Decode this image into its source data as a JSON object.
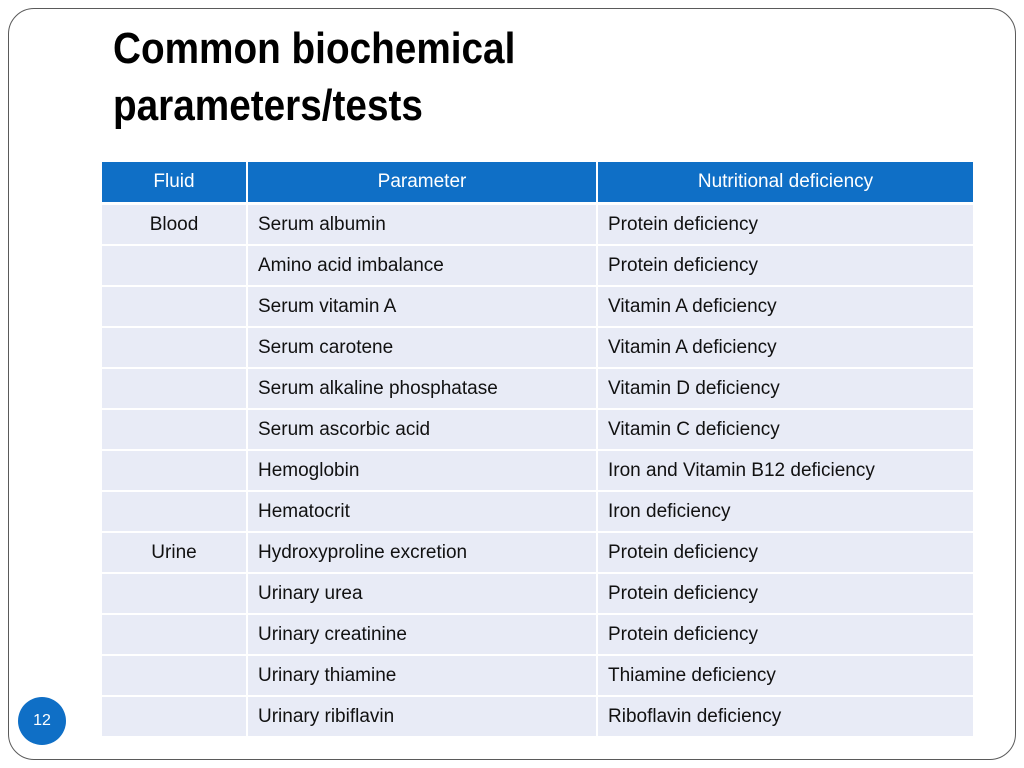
{
  "slide": {
    "title_line1": "Common biochemical",
    "title_line2": "parameters/tests",
    "page_number": "12"
  },
  "table": {
    "headers": [
      "Fluid",
      "Parameter",
      "Nutritional deficiency"
    ],
    "rows": [
      {
        "fluid": "Blood",
        "parameter": "Serum albumin",
        "deficiency": "Protein deficiency"
      },
      {
        "fluid": "",
        "parameter": "Amino acid imbalance",
        "deficiency": "Protein deficiency"
      },
      {
        "fluid": "",
        "parameter": "Serum vitamin A",
        "deficiency": "Vitamin A deficiency"
      },
      {
        "fluid": "",
        "parameter": "Serum carotene",
        "deficiency": "Vitamin A deficiency"
      },
      {
        "fluid": "",
        "parameter": "Serum alkaline phosphatase",
        "deficiency": "Vitamin D deficiency"
      },
      {
        "fluid": "",
        "parameter": "Serum ascorbic acid",
        "deficiency": "Vitamin C deficiency"
      },
      {
        "fluid": "",
        "parameter": "Hemoglobin",
        "deficiency": "Iron and Vitamin B12 deficiency"
      },
      {
        "fluid": "",
        "parameter": "Hematocrit",
        "deficiency": "Iron deficiency"
      },
      {
        "fluid": "Urine",
        "parameter": "Hydroxyproline excretion",
        "deficiency": "Protein deficiency"
      },
      {
        "fluid": "",
        "parameter": "Urinary urea",
        "deficiency": "Protein deficiency"
      },
      {
        "fluid": "",
        "parameter": "Urinary creatinine",
        "deficiency": "Protein deficiency"
      },
      {
        "fluid": "",
        "parameter": "Urinary thiamine",
        "deficiency": "Thiamine deficiency"
      },
      {
        "fluid": "",
        "parameter": "Urinary ribiflavin",
        "deficiency": "Riboflavin deficiency"
      }
    ]
  },
  "colors": {
    "header_bg": "#0f6fc6",
    "row_bg": "#e8ebf6",
    "badge_bg": "#0f6fc6"
  }
}
